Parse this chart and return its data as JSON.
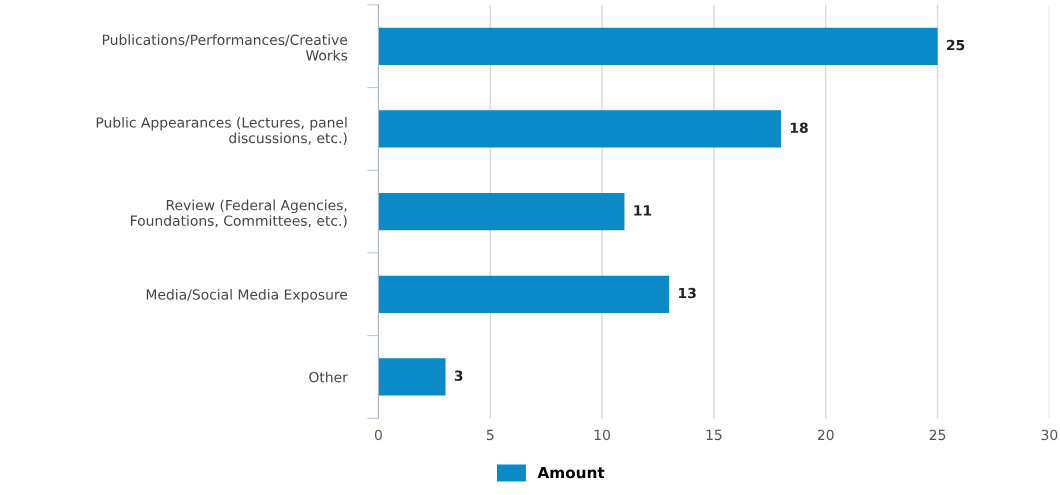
{
  "chart_data": {
    "type": "bar",
    "orientation": "horizontal",
    "categories": [
      "Publications/Performances/Creative Works",
      "Public Appearances (Lectures, panel discussions, etc.)",
      "Review (Federal Agencies, Foundations, Committees, etc.)",
      "Media/Social Media Exposure",
      "Other"
    ],
    "series": [
      {
        "name": "Amount",
        "color": "#0a8ac6",
        "values": [
          25,
          18,
          11,
          13,
          3
        ]
      }
    ],
    "xlim": [
      0,
      30
    ],
    "xticks": [
      0,
      5,
      10,
      15,
      20,
      25,
      30
    ],
    "grid": "x",
    "legend": "bottom",
    "data_labels": true
  }
}
